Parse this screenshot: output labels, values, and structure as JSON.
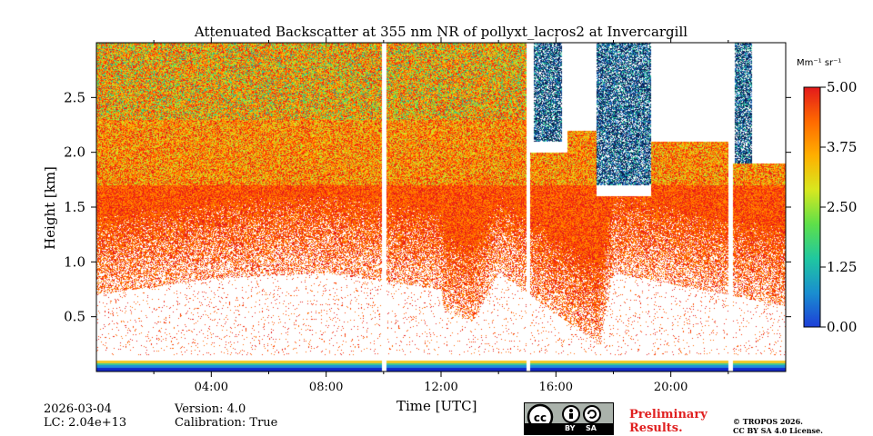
{
  "chart_data": {
    "type": "heatmap",
    "title": "Attenuated Backscatter at 355 nm NR of pollyxt_lacros2 at Invercargill",
    "xlabel": "Time [UTC]",
    "ylabel": "Height [km]",
    "xlim_hours": [
      0,
      24
    ],
    "ylim_km": [
      0.0,
      3.0
    ],
    "x_ticks": [
      {
        "h": 4,
        "label": "04:00"
      },
      {
        "h": 8,
        "label": "08:00"
      },
      {
        "h": 12,
        "label": "12:00"
      },
      {
        "h": 16,
        "label": "16:00"
      },
      {
        "h": 20,
        "label": "20:00"
      }
    ],
    "x_minor_hours": [
      2,
      6,
      10,
      14,
      18,
      22
    ],
    "y_ticks": [
      {
        "v": 0.5,
        "label": "0.5"
      },
      {
        "v": 1.0,
        "label": "1.0"
      },
      {
        "v": 1.5,
        "label": "1.5"
      },
      {
        "v": 2.0,
        "label": "2.0"
      },
      {
        "v": 2.5,
        "label": "2.5"
      }
    ],
    "colorbar": {
      "label": "Mm⁻¹ sr⁻¹",
      "min": 0.0,
      "max": 5.0,
      "ticks": [
        {
          "v": 0.0,
          "label": "0.00"
        },
        {
          "v": 1.25,
          "label": "1.25"
        },
        {
          "v": 2.5,
          "label": "2.50"
        },
        {
          "v": 3.75,
          "label": "3.75"
        },
        {
          "v": 5.0,
          "label": "5.00"
        }
      ],
      "colors": [
        "#1e3fd8",
        "#1a8fd0",
        "#20c8a0",
        "#5ee04a",
        "#d8e820",
        "#ffb000",
        "#ff6a00",
        "#e41a1c"
      ]
    },
    "data_gaps_hours": [
      [
        9.93,
        10.07
      ],
      [
        14.97,
        15.1
      ],
      [
        22.0,
        22.15
      ]
    ],
    "signal_top_km": [
      {
        "t0": 0,
        "t1": 15.0,
        "top": 3.0
      },
      {
        "t0": 15.0,
        "t1": 16.4,
        "top": 2.0
      },
      {
        "t0": 16.4,
        "t1": 17.4,
        "top": 2.2
      },
      {
        "t0": 17.4,
        "t1": 19.3,
        "top": 1.6
      },
      {
        "t0": 19.3,
        "t1": 22.0,
        "top": 2.1
      },
      {
        "t0": 22.0,
        "t1": 24.0,
        "top": 1.9
      }
    ],
    "aerosol_layer_bottom_km": [
      {
        "t": 0,
        "v": 0.7
      },
      {
        "t": 4,
        "v": 0.85
      },
      {
        "t": 8,
        "v": 0.9
      },
      {
        "t": 12,
        "v": 0.75
      },
      {
        "t": 12.1,
        "v": 0.55
      },
      {
        "t": 13.1,
        "v": 0.45
      },
      {
        "t": 14,
        "v": 0.9
      },
      {
        "t": 17.5,
        "v": 0.25
      },
      {
        "t": 18,
        "v": 0.9
      },
      {
        "t": 24,
        "v": 0.6
      }
    ],
    "cloud_segments": [
      {
        "t0": 15.2,
        "t1": 16.2,
        "bottom_km": 2.1,
        "top_km": 3.0
      },
      {
        "t0": 17.4,
        "t1": 19.3,
        "bottom_km": 1.7,
        "top_km": 3.0
      },
      {
        "t0": 22.2,
        "t1": 22.8,
        "bottom_km": 1.9,
        "top_km": 3.0
      }
    ],
    "near_surface_band_km": [
      0.0,
      0.1
    ]
  },
  "footer": {
    "date": "2026-03-04",
    "lc": "LC: 2.04e+13",
    "version": "Version: 4.0",
    "calibration": "Calibration: True",
    "preliminary_line1": "Preliminary",
    "preliminary_line2": "Results.",
    "copyright_line1": "© TROPOS 2026.",
    "copyright_line2": "CC BY SA 4.0 License.",
    "cc_by": "BY",
    "cc_sa": "SA"
  }
}
